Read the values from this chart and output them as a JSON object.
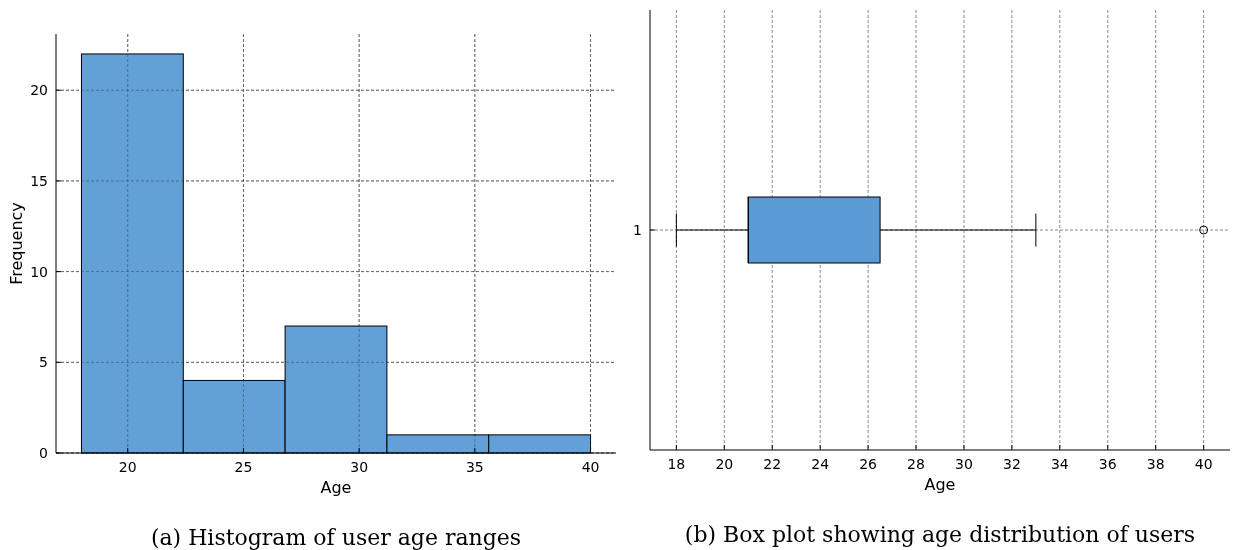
{
  "chart_data": [
    {
      "type": "histogram",
      "title": "(a) Histogram of user age ranges",
      "xlabel": "Age",
      "ylabel": "Frequency",
      "bins": [
        18,
        22.4,
        26.8,
        31.2,
        35.6,
        40
      ],
      "values": [
        22,
        4,
        7,
        1,
        1
      ],
      "color": "#5b9bd5",
      "xlim": [
        16.9,
        41.1
      ],
      "xticks": [
        20,
        25,
        30,
        35,
        40
      ],
      "ylim": [
        0,
        23.1
      ],
      "yticks": [
        0,
        5,
        10,
        15,
        20
      ],
      "grid": true
    },
    {
      "type": "box",
      "title": "(b) Box plot showing age distribution of users",
      "xlabel": "Age",
      "orientation": "horizontal",
      "categories": [
        "1"
      ],
      "color": "#5b9bd5",
      "boxes": [
        {
          "low": 18,
          "q1": 21,
          "median": 21,
          "q3": 26.5,
          "high": 33,
          "outliers": [
            40
          ]
        }
      ],
      "xlim": [
        16.9,
        41.1
      ],
      "xticks": [
        18,
        20,
        22,
        24,
        26,
        28,
        30,
        32,
        34,
        36,
        38,
        40
      ],
      "grid": true
    }
  ]
}
